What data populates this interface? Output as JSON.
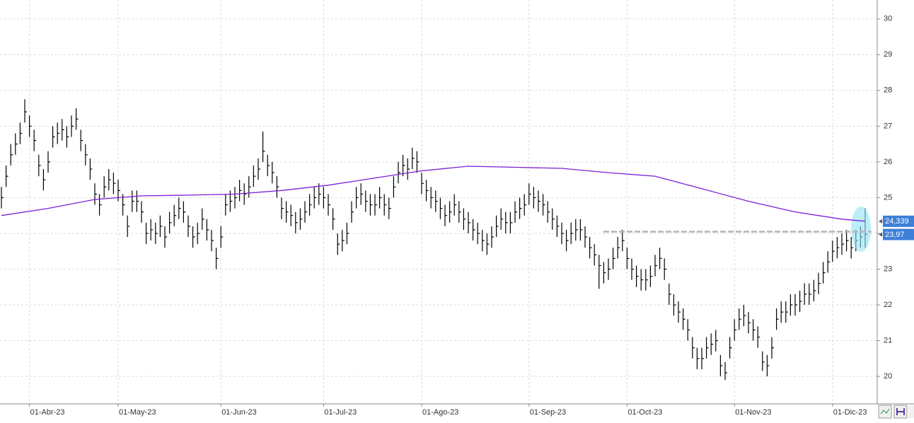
{
  "chart_data": {
    "type": "ohlc",
    "color": "#000000",
    "ylim": [
      19.23,
      30.53
    ],
    "yticks": [
      20,
      21,
      22,
      23,
      24,
      25,
      26,
      27,
      28,
      29,
      30
    ],
    "grid": true,
    "categories": [
      null,
      null,
      null,
      null,
      null,
      null,
      "01-Abr-23",
      null,
      null,
      null,
      null,
      null,
      null,
      null,
      null,
      null,
      null,
      null,
      null,
      null,
      null,
      null,
      null,
      null,
      null,
      "01-May-23",
      null,
      null,
      null,
      null,
      null,
      null,
      null,
      null,
      null,
      null,
      null,
      null,
      null,
      null,
      null,
      null,
      null,
      null,
      null,
      null,
      null,
      "01-Jun-23",
      null,
      null,
      null,
      null,
      null,
      null,
      null,
      null,
      null,
      null,
      null,
      null,
      null,
      null,
      null,
      null,
      null,
      null,
      null,
      null,
      null,
      "01-Jul-23",
      null,
      null,
      null,
      null,
      null,
      null,
      null,
      null,
      null,
      null,
      null,
      null,
      null,
      null,
      null,
      null,
      null,
      null,
      null,
      null,
      "01-Ago-23",
      null,
      null,
      null,
      null,
      null,
      null,
      null,
      null,
      null,
      null,
      null,
      null,
      null,
      null,
      null,
      null,
      null,
      null,
      null,
      null,
      null,
      null,
      "01-Sep-23",
      null,
      null,
      null,
      null,
      null,
      null,
      null,
      null,
      null,
      null,
      null,
      null,
      null,
      null,
      null,
      null,
      null,
      null,
      null,
      null,
      "01-Oct-23",
      null,
      null,
      null,
      null,
      null,
      null,
      null,
      null,
      null,
      null,
      null,
      null,
      null,
      null,
      null,
      null,
      null,
      null,
      null,
      null,
      null,
      null,
      "01-Nov-23",
      null,
      null,
      null,
      null,
      null,
      null,
      null,
      null,
      null,
      null,
      null,
      null,
      null,
      null,
      null,
      null,
      null,
      null,
      null,
      null,
      "01-Dic-23",
      null,
      null,
      null,
      null,
      null,
      null,
      null
    ],
    "high": [
      25.3,
      25.9,
      26.5,
      26.8,
      27.1,
      27.75,
      27.3,
      26.9,
      26.2,
      25.8,
      26.3,
      27.0,
      27.1,
      27.2,
      27.0,
      27.3,
      27.5,
      26.9,
      26.5,
      26.1,
      25.4,
      25.1,
      25.6,
      25.8,
      25.7,
      25.5,
      25.1,
      24.5,
      25.2,
      25.2,
      24.9,
      24.3,
      24.4,
      24.3,
      24.5,
      24.2,
      24.6,
      24.8,
      25.0,
      24.9,
      24.5,
      24.2,
      24.3,
      24.7,
      24.4,
      24.1,
      23.6,
      24.2,
      25.1,
      25.2,
      25.3,
      25.5,
      25.4,
      25.6,
      25.9,
      26.1,
      26.85,
      26.2,
      26.0,
      25.6,
      25.0,
      24.9,
      24.8,
      24.6,
      24.7,
      24.9,
      25.1,
      25.3,
      25.4,
      25.3,
      25.1,
      24.7,
      24.0,
      24.1,
      24.3,
      24.9,
      25.3,
      25.4,
      25.2,
      25.1,
      25.1,
      25.3,
      25.1,
      25.0,
      25.6,
      26.0,
      26.2,
      26.1,
      26.4,
      26.3,
      25.7,
      25.5,
      25.3,
      25.2,
      25.0,
      24.8,
      24.9,
      25.1,
      24.9,
      24.7,
      24.6,
      24.4,
      24.3,
      24.1,
      24.0,
      24.2,
      24.5,
      24.7,
      24.6,
      24.6,
      24.9,
      25.0,
      25.1,
      25.4,
      25.3,
      25.2,
      25.1,
      24.9,
      24.7,
      24.5,
      24.3,
      24.1,
      24.3,
      24.4,
      24.4,
      24.2,
      23.9,
      23.7,
      23.4,
      23.2,
      23.3,
      23.6,
      23.9,
      24.1,
      23.6,
      23.3,
      23.1,
      23.0,
      23.0,
      23.1,
      23.4,
      23.6,
      23.3,
      22.6,
      22.3,
      22.1,
      21.9,
      21.6,
      21.1,
      20.8,
      20.8,
      21.1,
      21.2,
      21.3,
      20.6,
      20.4,
      21.1,
      21.6,
      21.9,
      22.0,
      21.8,
      21.6,
      21.4,
      20.7,
      20.6,
      21.1,
      21.9,
      22.1,
      22.1,
      22.3,
      22.3,
      22.4,
      22.6,
      22.6,
      22.7,
      22.9,
      23.2,
      23.5,
      23.8,
      23.9,
      24.0,
      24.1,
      23.9,
      24.1,
      24.2,
      24.7
    ],
    "low": [
      24.7,
      25.3,
      25.9,
      26.2,
      26.5,
      27.1,
      26.7,
      26.3,
      25.6,
      25.2,
      25.7,
      26.4,
      26.5,
      26.6,
      26.4,
      26.7,
      26.9,
      26.3,
      25.9,
      25.5,
      24.8,
      24.5,
      25.0,
      25.2,
      25.1,
      24.9,
      24.5,
      23.9,
      24.6,
      24.6,
      24.3,
      23.7,
      23.8,
      23.7,
      23.9,
      23.6,
      24.0,
      24.2,
      24.4,
      24.3,
      23.9,
      23.6,
      23.7,
      24.1,
      23.8,
      23.5,
      23.0,
      23.6,
      24.5,
      24.6,
      24.7,
      24.9,
      24.8,
      25.0,
      25.3,
      25.5,
      26.0,
      25.6,
      25.4,
      25.0,
      24.4,
      24.3,
      24.2,
      24.0,
      24.1,
      24.3,
      24.5,
      24.7,
      24.8,
      24.7,
      24.5,
      24.1,
      23.4,
      23.5,
      23.7,
      24.3,
      24.7,
      24.8,
      24.6,
      24.5,
      24.5,
      24.7,
      24.5,
      24.4,
      25.0,
      25.4,
      25.6,
      25.5,
      25.8,
      25.7,
      25.1,
      24.9,
      24.7,
      24.6,
      24.4,
      24.2,
      24.3,
      24.5,
      24.3,
      24.1,
      24.0,
      23.8,
      23.7,
      23.5,
      23.4,
      23.6,
      23.9,
      24.1,
      24.0,
      24.0,
      24.3,
      24.4,
      24.5,
      24.8,
      24.7,
      24.6,
      24.5,
      24.3,
      24.1,
      23.9,
      23.7,
      23.5,
      23.7,
      23.8,
      23.8,
      23.6,
      23.3,
      23.1,
      22.45,
      22.6,
      22.7,
      23.0,
      23.3,
      23.5,
      23.0,
      22.7,
      22.5,
      22.4,
      22.4,
      22.5,
      22.8,
      23.0,
      22.7,
      22.0,
      21.7,
      21.5,
      21.3,
      21.0,
      20.5,
      20.2,
      20.2,
      20.5,
      20.6,
      20.7,
      20.0,
      19.9,
      20.5,
      21.0,
      21.3,
      21.4,
      21.2,
      21.0,
      20.8,
      20.15,
      20.0,
      20.5,
      21.3,
      21.5,
      21.5,
      21.7,
      21.7,
      21.8,
      22.0,
      22.0,
      22.1,
      22.3,
      22.6,
      22.9,
      23.2,
      23.3,
      23.4,
      23.5,
      23.3,
      23.5,
      23.6,
      23.6
    ],
    "values": [
      25.0,
      25.6,
      26.2,
      26.5,
      26.8,
      27.4,
      27.0,
      26.6,
      25.9,
      25.5,
      26.0,
      26.7,
      26.8,
      26.9,
      26.7,
      27.0,
      27.2,
      26.6,
      26.2,
      25.8,
      25.1,
      24.8,
      25.3,
      25.5,
      25.4,
      25.2,
      24.8,
      24.2,
      24.9,
      24.9,
      24.6,
      24.0,
      24.1,
      24.0,
      24.2,
      23.9,
      24.3,
      24.5,
      24.7,
      24.6,
      24.2,
      23.9,
      24.0,
      24.4,
      24.1,
      23.8,
      23.3,
      23.9,
      24.8,
      24.9,
      25.0,
      25.2,
      25.1,
      25.3,
      25.6,
      25.8,
      26.3,
      25.9,
      25.7,
      25.3,
      24.7,
      24.6,
      24.5,
      24.3,
      24.4,
      24.6,
      24.8,
      25.0,
      25.1,
      25.0,
      24.8,
      24.4,
      23.7,
      23.8,
      24.0,
      24.6,
      25.0,
      25.1,
      24.9,
      24.8,
      24.8,
      25.0,
      24.8,
      24.7,
      25.3,
      25.7,
      25.9,
      25.8,
      26.1,
      26.0,
      25.4,
      25.2,
      25.0,
      24.9,
      24.7,
      24.5,
      24.6,
      24.8,
      24.6,
      24.4,
      24.3,
      24.1,
      24.0,
      23.8,
      23.7,
      23.9,
      24.2,
      24.4,
      24.3,
      24.3,
      24.6,
      24.7,
      24.8,
      25.1,
      25.0,
      24.9,
      24.8,
      24.6,
      24.4,
      24.2,
      24.0,
      23.8,
      24.0,
      24.1,
      24.1,
      23.9,
      23.6,
      23.4,
      23.1,
      22.9,
      23.0,
      23.3,
      23.6,
      23.8,
      23.3,
      23.0,
      22.8,
      22.7,
      22.7,
      22.8,
      23.1,
      23.3,
      23.0,
      22.3,
      22.0,
      21.8,
      21.6,
      21.3,
      20.8,
      20.5,
      20.5,
      20.8,
      20.9,
      21.0,
      20.3,
      20.1,
      20.8,
      21.3,
      21.6,
      21.7,
      21.5,
      21.3,
      21.1,
      20.4,
      20.3,
      20.8,
      21.6,
      21.8,
      21.8,
      22.0,
      22.0,
      22.1,
      22.3,
      22.3,
      22.4,
      22.6,
      22.9,
      23.2,
      23.5,
      23.6,
      23.7,
      23.8,
      23.6,
      23.8,
      23.9,
      23.97
    ],
    "close_label": "23,97",
    "moving_average": {
      "color": "#7a1fd6",
      "x": [
        0,
        10,
        20,
        30,
        40,
        50,
        60,
        70,
        80,
        90,
        100,
        110,
        120,
        130,
        140,
        150,
        160,
        170,
        180,
        185
      ],
      "values": [
        24.5,
        24.7,
        24.95,
        25.05,
        25.07,
        25.1,
        25.2,
        25.35,
        25.55,
        25.75,
        25.88,
        25.85,
        25.82,
        25.7,
        25.6,
        25.25,
        24.9,
        24.6,
        24.4,
        24.339
      ],
      "last_label": "24,339"
    },
    "level": 24.05
  }
}
